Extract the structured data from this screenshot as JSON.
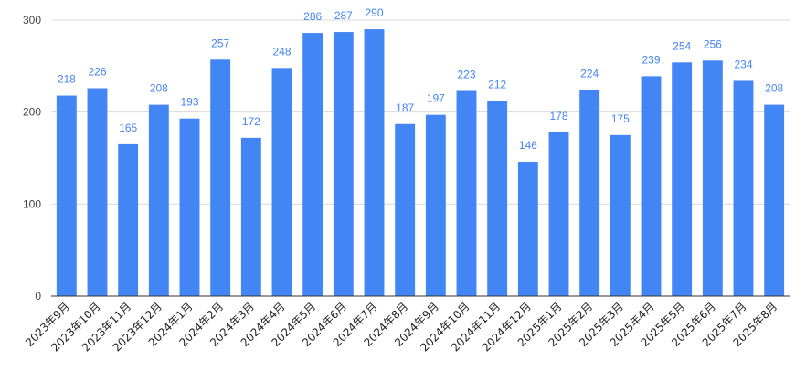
{
  "chart_data": {
    "type": "bar",
    "title": "",
    "xlabel": "",
    "ylabel": "",
    "ylim": [
      0,
      300
    ],
    "yticks": [
      0,
      100,
      200,
      300
    ],
    "grid": true,
    "legend": "none",
    "bar_color": "#4285f4",
    "label_color": "#4285f4",
    "categories": [
      "2023年9月",
      "2023年10月",
      "2023年11月",
      "2023年12月",
      "2024年1月",
      "2024年2月",
      "2024年3月",
      "2024年4月",
      "2024年5月",
      "2024年6月",
      "2024年7月",
      "2024年8月",
      "2024年9月",
      "2024年10月",
      "2024年11月",
      "2024年12月",
      "2025年1月",
      "2025年2月",
      "2025年3月",
      "2025年4月",
      "2025年5月",
      "2025年6月",
      "2025年7月",
      "2025年8月"
    ],
    "values": [
      218,
      226,
      165,
      208,
      193,
      257,
      172,
      248,
      286,
      287,
      290,
      187,
      197,
      223,
      212,
      146,
      178,
      224,
      175,
      239,
      254,
      256,
      234,
      208
    ]
  }
}
